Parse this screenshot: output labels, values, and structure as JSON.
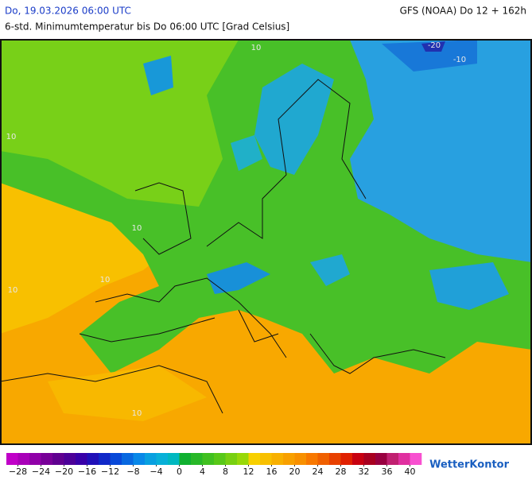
{
  "header": {
    "date": "Do, 19.03.2026 06:00 UTC",
    "model": "GFS (NOAA) Do 12 + 162h",
    "subtitle": "6-std. Minimumtemperatur bis Do 06:00 UTC [Grad Celsius]"
  },
  "map": {
    "contour_labels": [
      "-20",
      "-10",
      "10",
      "10",
      "10",
      "10",
      "10",
      "10"
    ]
  },
  "colorbar": {
    "range": [
      -30,
      42
    ],
    "colors": [
      "#c000c8",
      "#a800b8",
      "#9000a8",
      "#780098",
      "#600090",
      "#4c0098",
      "#3800a8",
      "#2010b8",
      "#1028c8",
      "#0848d8",
      "#0868e0",
      "#0888e8",
      "#08a0e0",
      "#08b0d8",
      "#00b8c0",
      "#10b030",
      "#28b828",
      "#40c020",
      "#58c818",
      "#78d010",
      "#98d808",
      "#f8d000",
      "#f8c000",
      "#f8b000",
      "#f8a000",
      "#f89000",
      "#f87800",
      "#f06000",
      "#e84000",
      "#e02000",
      "#c80010",
      "#a80020",
      "#980040",
      "#c02070",
      "#e030a0",
      "#f850d0"
    ],
    "ticks": [
      {
        "value": -28,
        "label": "−28"
      },
      {
        "value": -24,
        "label": "−24"
      },
      {
        "value": -20,
        "label": "−20"
      },
      {
        "value": -16,
        "label": "−16"
      },
      {
        "value": -12,
        "label": "−12"
      },
      {
        "value": -8,
        "label": "−8"
      },
      {
        "value": -4,
        "label": "−4"
      },
      0,
      4,
      8,
      12,
      16,
      20,
      24,
      28,
      32,
      36,
      40
    ]
  },
  "brand": "WetterKontor"
}
